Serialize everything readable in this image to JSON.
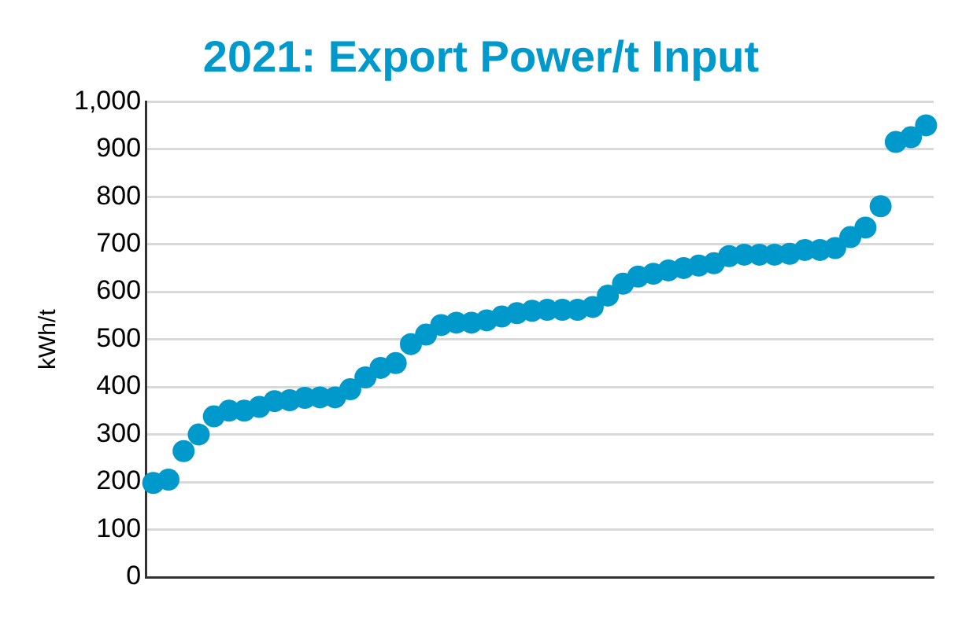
{
  "chart_data": {
    "type": "scatter",
    "title": "2021: Export Power/t Input",
    "ylabel": "kWh/t",
    "categories": [
      null,
      null,
      null,
      null,
      null,
      null,
      null,
      null,
      null,
      null,
      null,
      null,
      null,
      null,
      null,
      null,
      null,
      null,
      null,
      null,
      null,
      null,
      null,
      null,
      null,
      null,
      null,
      null,
      null,
      null,
      null,
      null,
      null,
      null,
      null,
      null,
      null,
      null,
      null,
      null,
      null,
      null,
      null,
      null,
      null,
      null,
      null,
      null,
      null,
      null,
      null,
      null
    ],
    "values": [
      198,
      205,
      265,
      300,
      338,
      350,
      350,
      358,
      370,
      372,
      377,
      378,
      378,
      395,
      420,
      440,
      450,
      490,
      510,
      530,
      535,
      535,
      540,
      548,
      555,
      560,
      562,
      562,
      562,
      568,
      592,
      617,
      632,
      638,
      645,
      650,
      655,
      660,
      675,
      678,
      678,
      678,
      680,
      688,
      688,
      692,
      715,
      735,
      780,
      915,
      925,
      950
    ],
    "color": "#0099cc",
    "marker": "circle",
    "ylim": [
      0,
      1000
    ],
    "yticks": [
      0,
      100,
      200,
      300,
      400,
      500,
      600,
      700,
      800,
      900,
      {
        "value": 1000,
        "label": "1,000"
      }
    ],
    "grid": "y",
    "legend": false,
    "tick_labels": "y"
  }
}
